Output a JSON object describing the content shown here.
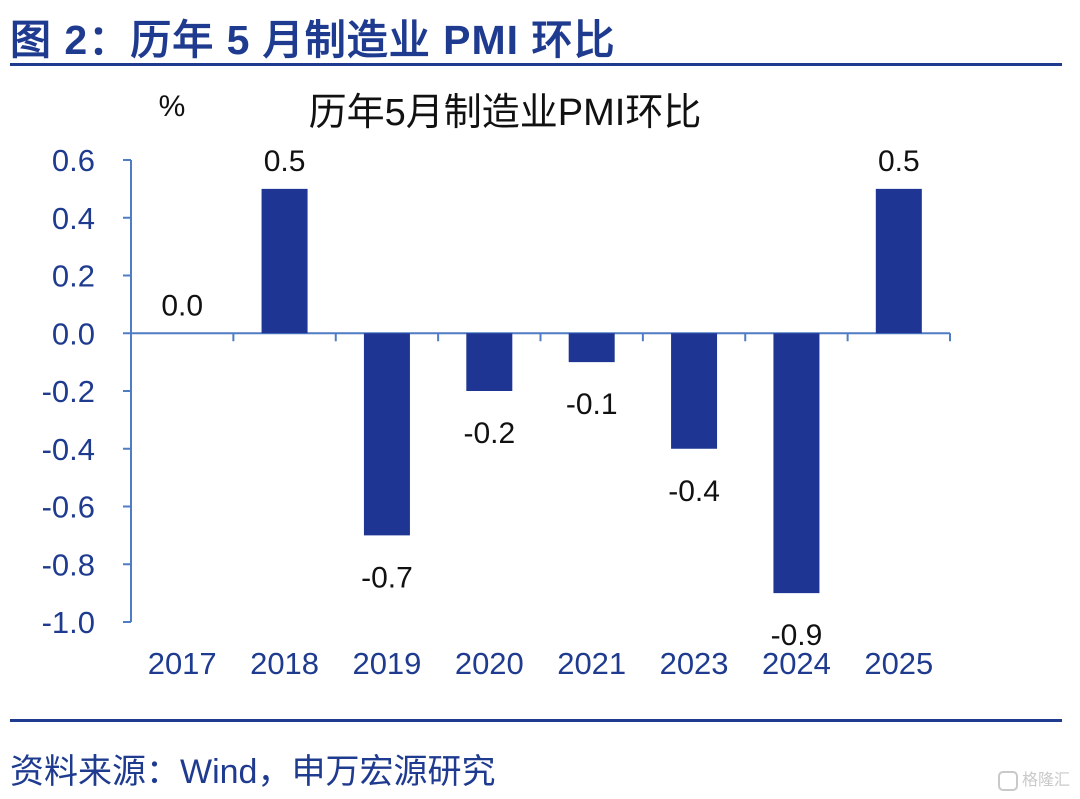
{
  "figure": {
    "title": "图 2：历年 5 月制造业 PMI 环比",
    "source": "资料来源：Wind，申万宏源研究",
    "watermark": "格隆汇"
  },
  "colors": {
    "accent": "#1f3b8f",
    "bar": "#1f3593",
    "axis": "#4f7cc4",
    "text": "#111111"
  },
  "chart_data": {
    "type": "bar",
    "title": "历年5月制造业PMI环比",
    "ylabel": "%",
    "xlabel": "",
    "categories": [
      "2017",
      "2018",
      "2019",
      "2020",
      "2021",
      "2023",
      "2024",
      "2025"
    ],
    "values": [
      0.0,
      0.5,
      -0.7,
      -0.2,
      -0.1,
      -0.4,
      -0.9,
      0.5
    ],
    "data_labels": [
      "0.0",
      "0.5",
      "-0.7",
      "-0.2",
      "-0.1",
      "-0.4",
      "-0.9",
      "0.5"
    ],
    "ylim": [
      -1.0,
      0.6
    ],
    "yticks": [
      "0.6",
      "0.4",
      "0.2",
      "0.0",
      "-0.2",
      "-0.4",
      "-0.6",
      "-0.8",
      "-1.0"
    ],
    "grid": false,
    "legend": "none"
  }
}
